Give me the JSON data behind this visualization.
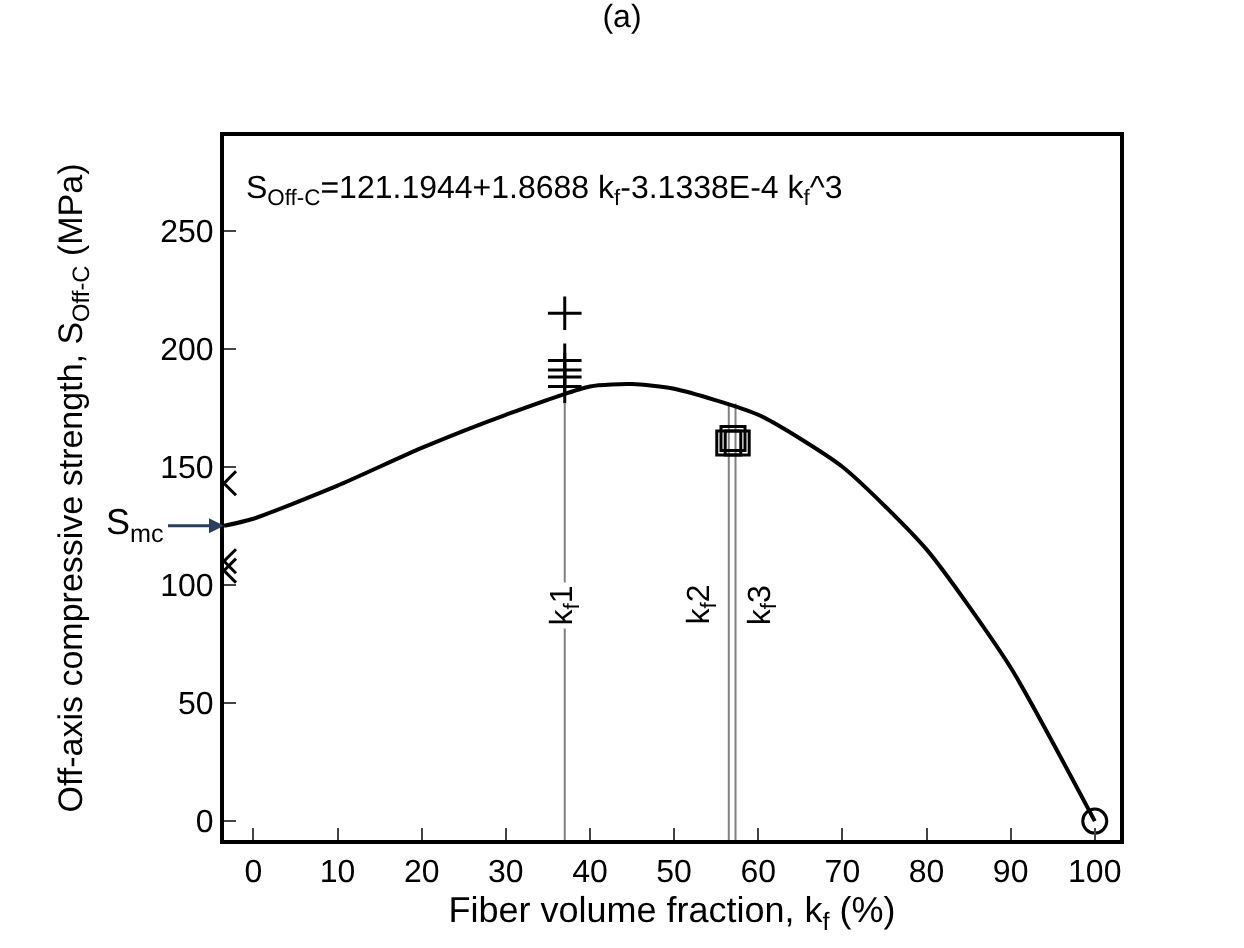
{
  "chart_data": {
    "type": "line",
    "title": "(a)",
    "xlabel": "Fiber volume fraction, k$_{f}$ (%)",
    "ylabel": "Off-axis compressive strength, S$_{Off-C}$ (MPa)",
    "xlim": [
      -3.5,
      103
    ],
    "ylim": [
      -8,
      290
    ],
    "xticks": [
      0,
      10,
      20,
      30,
      40,
      50,
      60,
      70,
      80,
      90,
      100
    ],
    "yticks": [
      0,
      50,
      100,
      150,
      200,
      250
    ],
    "grid": false,
    "series": [
      {
        "color": "#000000",
        "marker": "none",
        "x": [
          -3.5,
          0,
          10,
          20,
          30,
          40,
          45,
          50,
          60,
          70,
          80,
          90,
          100
        ],
        "values": [
          125,
          128,
          142,
          158,
          172,
          184,
          185,
          183,
          172,
          150,
          115,
          65,
          0
        ]
      },
      {
        "type": "scatter",
        "color": "#000000",
        "marker": "cross",
        "x": [
          -3.5,
          -3.5,
          -3.5
        ],
        "values": [
          143,
          110,
          106
        ]
      },
      {
        "type": "scatter",
        "color": "#000000",
        "marker": "plus",
        "x": [
          37,
          37,
          37,
          37,
          37
        ],
        "values": [
          215,
          195,
          191,
          188,
          184
        ]
      },
      {
        "type": "scatter",
        "color": "#000000",
        "marker": "square",
        "x": [
          56.5,
          57,
          57.5
        ],
        "values": [
          160,
          162,
          160
        ]
      },
      {
        "type": "scatter",
        "color": "#000000",
        "marker": "circle",
        "x": [
          100
        ],
        "values": [
          0
        ]
      }
    ],
    "ref_lines": [
      {
        "axis": "x",
        "value": 37,
        "label": "k$_{f}$1",
        "color": "#808080"
      },
      {
        "axis": "x",
        "value": 56.5,
        "label": "k$_{f}$2",
        "color": "#808080"
      },
      {
        "axis": "x",
        "value": 57.3,
        "label": "k$_{f}$3",
        "color": "#808080"
      }
    ],
    "annotations": [
      "S$_{Off-C}$=121.1944+1.8688 k$_{f}$-3.1338E-4 k$_{f}$^3",
      {
        "text": "S$_{mc}$",
        "x": -3.5,
        "y": 125
      }
    ]
  }
}
